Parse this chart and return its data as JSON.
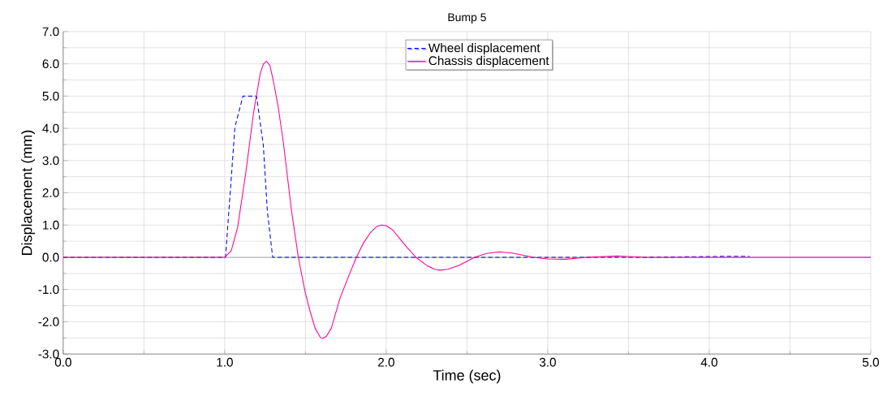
{
  "chart_data": {
    "type": "line",
    "title": "Bump 5",
    "xlabel": "Time (sec)",
    "ylabel": "Displacement (mm)",
    "xlim": [
      0,
      5
    ],
    "ylim": [
      -3,
      7
    ],
    "xticks": [
      {
        "value": 0,
        "label": "0.0"
      },
      {
        "value": 1,
        "label": "1.0"
      },
      {
        "value": 2,
        "label": "2.0"
      },
      {
        "value": 3,
        "label": "3.0"
      },
      {
        "value": 4,
        "label": "4.0"
      },
      {
        "value": 5,
        "label": "5.0"
      }
    ],
    "yticks": [
      {
        "value": -3,
        "label": "-3.0"
      },
      {
        "value": -2,
        "label": "-2.0"
      },
      {
        "value": -1,
        "label": "-1.0"
      },
      {
        "value": 0,
        "label": "0.0"
      },
      {
        "value": 1,
        "label": "1.0"
      },
      {
        "value": 2,
        "label": "2.0"
      },
      {
        "value": 3,
        "label": "3.0"
      },
      {
        "value": 4,
        "label": "4.0"
      },
      {
        "value": 5,
        "label": "5.0"
      },
      {
        "value": 6,
        "label": "6.0"
      },
      {
        "value": 7,
        "label": "7.0"
      }
    ],
    "grid": true,
    "legend": "top",
    "marker": "none",
    "series": [
      {
        "name": "Wheel displacement",
        "color": "#0000ff",
        "line_style": "dashed",
        "x": [
          0,
          1.0,
          1.005,
          1.038,
          1.063,
          1.113,
          1.197,
          1.239,
          1.264,
          1.297,
          3.3,
          3.4,
          3.5,
          3.6,
          4.0,
          4.1,
          4.25
        ],
        "values": [
          0,
          0,
          0,
          2.27,
          4.03,
          5.0,
          5.0,
          3.48,
          1.43,
          0,
          0,
          null,
          null,
          0,
          null,
          0.03,
          0.03
        ]
      },
      {
        "name": "Chassis displacement",
        "color": "#ff0099",
        "line_style": "solid",
        "x": [
          0,
          1.0,
          1.04,
          1.08,
          1.13,
          1.18,
          1.22,
          1.24,
          1.259,
          1.28,
          1.3,
          1.33,
          1.364,
          1.414,
          1.456,
          1.498,
          1.53,
          1.56,
          1.59,
          1.606,
          1.63,
          1.66,
          1.715,
          1.77,
          1.815,
          1.86,
          1.9,
          1.94,
          1.97,
          2.0,
          2.04,
          2.08,
          2.13,
          2.184,
          2.25,
          2.3,
          2.334,
          2.38,
          2.45,
          2.548,
          2.62,
          2.7,
          2.78,
          2.914,
          3.0,
          3.112,
          3.237,
          3.434,
          3.63,
          5
        ],
        "values": [
          0,
          0,
          0.2,
          0.93,
          2.6,
          4.53,
          5.7,
          6.0,
          6.08,
          5.95,
          5.5,
          4.7,
          3.53,
          1.43,
          0,
          -1.08,
          -1.7,
          -2.2,
          -2.47,
          -2.52,
          -2.45,
          -2.2,
          -1.25,
          -0.55,
          0,
          0.45,
          0.75,
          0.95,
          1.0,
          0.98,
          0.85,
          0.6,
          0.3,
          0,
          -0.25,
          -0.37,
          -0.4,
          -0.37,
          -0.25,
          0,
          0.12,
          0.17,
          0.13,
          0,
          -0.05,
          -0.06,
          0,
          0.04,
          0,
          0
        ]
      }
    ]
  }
}
